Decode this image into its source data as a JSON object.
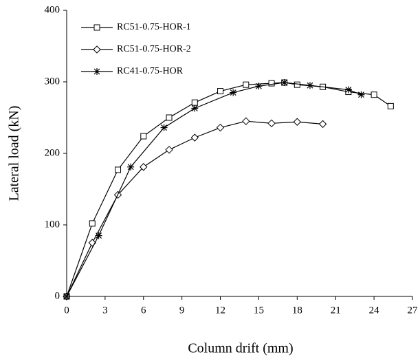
{
  "chart_data": {
    "type": "line",
    "x_label": "Column drift (mm)",
    "y_label": "Lateral load (kN)",
    "xlim": [
      0,
      27
    ],
    "xticks": [
      0,
      3,
      6,
      9,
      12,
      15,
      18,
      21,
      24,
      27
    ],
    "ylim": [
      0,
      400
    ],
    "yticks": [
      0,
      100,
      200,
      300,
      400
    ],
    "grid": false,
    "legend": "upper left",
    "series": [
      {
        "name": "RC51-0.75-HOR-1",
        "color": "#000000",
        "marker": "square",
        "x": [
          0,
          2,
          4,
          6,
          8,
          10,
          12,
          14,
          16,
          17,
          18,
          20,
          22,
          24,
          25.3
        ],
        "values": [
          0,
          102,
          177,
          224,
          250,
          271,
          287,
          296,
          298,
          299,
          296,
          293,
          286,
          282,
          266
        ]
      },
      {
        "name": "RC51-0.75-HOR-2",
        "color": "#000000",
        "marker": "diamond",
        "x": [
          0,
          2,
          4,
          6,
          8,
          10,
          12,
          14,
          16,
          18,
          20
        ],
        "values": [
          0,
          75,
          142,
          181,
          205,
          222,
          236,
          245,
          242,
          244,
          241
        ]
      },
      {
        "name": "RC41-0.75-HOR",
        "color": "#000000",
        "marker": "asterisk",
        "x": [
          0,
          2.5,
          5,
          7.6,
          10,
          13,
          15,
          17,
          19,
          22,
          23
        ],
        "values": [
          0,
          85,
          181,
          236,
          263,
          285,
          294,
          299,
          295,
          289,
          282
        ]
      }
    ]
  }
}
